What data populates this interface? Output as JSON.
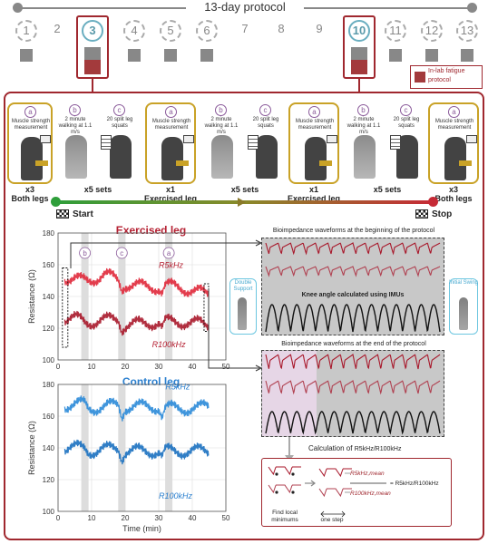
{
  "protocol": {
    "title": "13-day protocol",
    "days": [
      "1",
      "2",
      "3",
      "4",
      "5",
      "6",
      "7",
      "8",
      "9",
      "10",
      "11",
      "12",
      "13"
    ],
    "highlight_days": [
      "3",
      "10"
    ],
    "legend_label": "In-lab fatigue protocol"
  },
  "steps": [
    {
      "badge": "a",
      "text": "Muscle strength measurement"
    },
    {
      "badge": "b",
      "text": "2 minute walking at 1.1 m/s"
    },
    {
      "badge": "c",
      "text": "20 split leg squats"
    },
    {
      "badge": "a",
      "text": "Muscle strength measurement"
    },
    {
      "badge": "b",
      "text": "2 minute walking at 1.1 m/s"
    },
    {
      "badge": "c",
      "text": "20 split leg squats"
    },
    {
      "badge": "a",
      "text": "Muscle strength measurement"
    },
    {
      "badge": "b",
      "text": "2 minute walking at 1.1 m/s"
    },
    {
      "badge": "c",
      "text": "20 split leg squats"
    },
    {
      "badge": "a",
      "text": "Muscle strength measurement"
    }
  ],
  "step_labels": [
    {
      "top": "x3",
      "bottom": "Both legs"
    },
    {
      "top": "x5 sets",
      "bottom": ""
    },
    {
      "top": "x1",
      "bottom": "Exercised leg"
    },
    {
      "top": "x5 sets",
      "bottom": ""
    },
    {
      "top": "x1",
      "bottom": "Exercised leg"
    },
    {
      "top": "x5 sets",
      "bottom": ""
    },
    {
      "top": "x3",
      "bottom": "Both legs"
    }
  ],
  "timeline": {
    "start": "Start",
    "stop": "Stop"
  },
  "chart_exercised": {
    "title": "Exercised leg",
    "ylabel": "Resistance (Ω)",
    "yticks": [
      "180",
      "160",
      "140",
      "120",
      "100"
    ],
    "xticks": [
      "0",
      "10",
      "20",
      "30",
      "40",
      "50"
    ],
    "series_labels": {
      "high": "R5kHz",
      "low": "R100kHz"
    },
    "badges": [
      "b",
      "c",
      "a"
    ]
  },
  "chart_control": {
    "title": "Control leg",
    "ylabel": "Resistance (Ω)",
    "yticks": [
      "180",
      "160",
      "140",
      "120",
      "100"
    ],
    "xticks": [
      "0",
      "10",
      "20",
      "30",
      "40",
      "50"
    ],
    "xlabel": "Time (min)",
    "series_labels": {
      "high": "R5kHz",
      "low": "R100kHz"
    }
  },
  "chart_data": [
    {
      "type": "line",
      "title": "Exercised leg",
      "xlabel": "",
      "ylabel": "Resistance (Ω)",
      "xlim": [
        0,
        50
      ],
      "ylim": [
        100,
        180
      ],
      "series": [
        {
          "name": "R5kHz",
          "x": [
            2,
            5,
            7,
            8,
            9,
            14,
            18,
            19,
            20,
            26,
            30,
            31,
            32,
            38,
            42,
            44,
            45
          ],
          "values": [
            152,
            151,
            150,
            150,
            150,
            154,
            150,
            145,
            148,
            146,
            146,
            143,
            147,
            145,
            143,
            141,
            141
          ]
        },
        {
          "name": "R100kHz",
          "x": [
            2,
            5,
            7,
            8,
            9,
            14,
            18,
            19,
            20,
            26,
            30,
            31,
            32,
            38,
            42,
            44,
            45
          ],
          "values": [
            126,
            126,
            125,
            124,
            124,
            125,
            126,
            120,
            122,
            123,
            124,
            120,
            124,
            124,
            123,
            122,
            122
          ]
        }
      ]
    },
    {
      "type": "line",
      "title": "Control leg",
      "xlabel": "Time (min)",
      "ylabel": "Resistance (Ω)",
      "xlim": [
        0,
        50
      ],
      "ylim": [
        100,
        180
      ],
      "series": [
        {
          "name": "R5kHz",
          "x": [
            2,
            5,
            8,
            9,
            14,
            18,
            19,
            20,
            26,
            30,
            31,
            32,
            38,
            42,
            44,
            45
          ],
          "values": [
            167,
            167,
            168,
            165,
            166,
            167,
            160,
            166,
            166,
            166,
            160,
            165,
            165,
            165,
            166,
            166
          ]
        },
        {
          "name": "R100kHz",
          "x": [
            2,
            5,
            8,
            9,
            14,
            18,
            19,
            20,
            26,
            30,
            31,
            32,
            38,
            42,
            44,
            45
          ],
          "values": [
            140,
            140,
            140,
            138,
            139,
            140,
            134,
            138,
            138,
            138,
            134,
            138,
            138,
            138,
            138,
            138
          ]
        }
      ]
    }
  ],
  "panels": {
    "begin_title": "Bioimpedance waveforms at the beginning of the protocol",
    "knee_label": "Knee angle calculated using IMUs",
    "end_title": "Bioimpedance waveforms at the end of the protocol",
    "double_support": "Double Support",
    "initial_swing": "Initial Swing",
    "calc_title": "Calculation of",
    "calc_ratio": "R5kHz/R100kHz",
    "find_local": "Find local minimums",
    "one_step": "one step",
    "r5_mean": "R5kHz,mean",
    "r100_mean": "R100kHz,mean",
    "equals": "= R5kHz/R100kHz"
  }
}
